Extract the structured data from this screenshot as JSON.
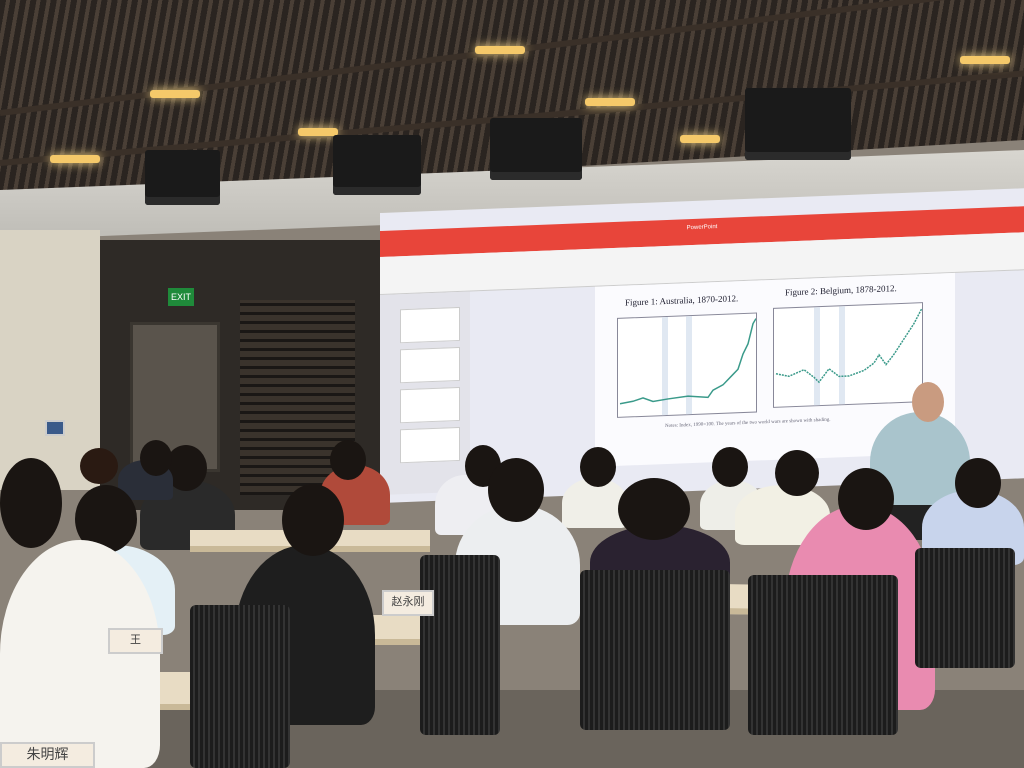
{
  "scene": {
    "exit_sign": "EXIT",
    "screen": {
      "app_title": "PowerPoint",
      "slide": {
        "figure1_title": "Figure 1: Australia, 1870-2012.",
        "figure2_title": "Figure 2: Belgium, 1878-2012.",
        "notes": "Notes: Index, 1990=100. The years of the two world wars are shown with shading."
      }
    },
    "name_plates": [
      "王",
      "赵永刚",
      "朱明辉"
    ],
    "colors": {
      "title_bar": "#e8453a",
      "series": "#3a9a8a",
      "ceiling_light": "#f5c96a"
    }
  }
}
